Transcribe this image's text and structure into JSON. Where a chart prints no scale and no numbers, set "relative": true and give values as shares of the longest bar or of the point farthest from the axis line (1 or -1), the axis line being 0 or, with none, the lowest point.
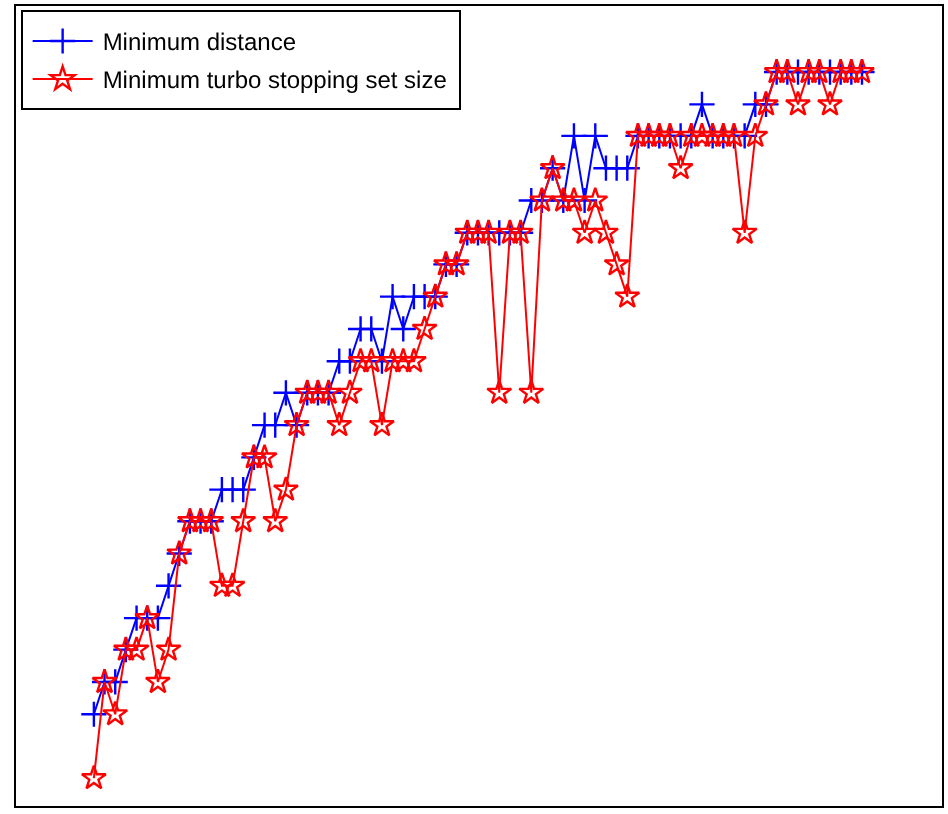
{
  "chart_data": {
    "type": "line",
    "relative": true,
    "legend": "top left",
    "categories": [
      null,
      null,
      null,
      null,
      null,
      null,
      null,
      null,
      null,
      null,
      null,
      null,
      null,
      null,
      null,
      null,
      null,
      null,
      null,
      null,
      null,
      null,
      null,
      null,
      null,
      null,
      null,
      null,
      null,
      null,
      null,
      null,
      null,
      null,
      null,
      null,
      null,
      null,
      null,
      null,
      null,
      null,
      null,
      null,
      null,
      null,
      null,
      null,
      null,
      null,
      null,
      null,
      null,
      null,
      null,
      null,
      null,
      null,
      null,
      null,
      null,
      null,
      null,
      null,
      null,
      null,
      null,
      null,
      null,
      null,
      null,
      null,
      null
    ],
    "series": [
      {
        "name": "Minimum distance",
        "color": "#0000ff",
        "marker": "cross",
        "values": [
          0.125,
          0.169,
          0.169,
          0.213,
          0.256,
          0.256,
          0.256,
          0.3,
          0.344,
          0.388,
          0.388,
          0.388,
          0.431,
          0.431,
          0.431,
          0.475,
          0.519,
          0.519,
          0.563,
          0.519,
          0.563,
          0.563,
          0.563,
          0.606,
          0.606,
          0.65,
          0.65,
          0.606,
          0.694,
          0.65,
          0.694,
          0.694,
          0.694,
          0.738,
          0.738,
          0.781,
          0.781,
          0.781,
          0.781,
          0.781,
          0.781,
          0.825,
          0.825,
          0.869,
          0.825,
          0.913,
          0.825,
          0.913,
          0.869,
          0.869,
          0.869,
          0.913,
          0.913,
          0.913,
          0.913,
          0.913,
          0.913,
          0.956,
          0.913,
          0.913,
          0.913,
          0.913,
          0.956,
          0.956,
          1,
          1,
          1,
          1,
          1,
          1,
          1,
          1,
          1
        ]
      },
      {
        "name": "Minimum turbo stopping set size",
        "color": "#ff0000",
        "marker": "star",
        "values": [
          0.038,
          0.169,
          0.125,
          0.213,
          0.213,
          0.256,
          0.169,
          0.213,
          0.344,
          0.388,
          0.388,
          0.388,
          0.3,
          0.3,
          0.388,
          0.475,
          0.475,
          0.388,
          0.431,
          0.519,
          0.563,
          0.563,
          0.563,
          0.519,
          0.563,
          0.606,
          0.606,
          0.519,
          0.606,
          0.606,
          0.606,
          0.65,
          0.694,
          0.738,
          0.738,
          0.781,
          0.781,
          0.781,
          0.563,
          0.781,
          0.781,
          0.563,
          0.825,
          0.869,
          0.825,
          0.825,
          0.781,
          0.825,
          0.781,
          0.738,
          0.694,
          0.913,
          0.913,
          0.913,
          0.913,
          0.869,
          0.913,
          0.913,
          0.913,
          0.913,
          0.913,
          0.781,
          0.913,
          0.956,
          1,
          1,
          0.956,
          1,
          1,
          0.956,
          1,
          1,
          1
        ]
      }
    ]
  }
}
